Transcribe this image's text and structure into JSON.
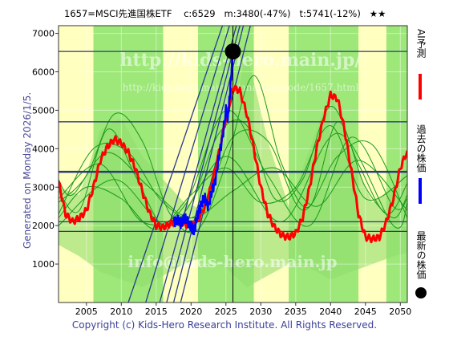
{
  "header": {
    "title": "1657=MSCI先進国株ETF    c:6529   m:3480(-47%)   t:5741(-12%)   ★★"
  },
  "side_label": "Generated on Monday 2026/1/5.",
  "copyright": "Copyright (c) Kids-Hero Research Institute. All Rights Reserved.",
  "watermark": {
    "line1": "http://kids-hero.main.jp/",
    "line2": "http://kids-hero.main.jp/analysis/code/1657.html",
    "line3": "info@kids-hero.main.jp"
  },
  "legend": [
    {
      "label": "AI予測",
      "color": "#ff0000"
    },
    {
      "label": "過去の株価",
      "color": "#0000ff"
    },
    {
      "label": "最新の株価",
      "color": "#000000"
    }
  ],
  "chart_data": {
    "type": "line",
    "xlim": [
      2001,
      2051
    ],
    "ylim": [
      0,
      7200
    ],
    "x_ticks": [
      2005,
      2010,
      2015,
      2020,
      2025,
      2030,
      2035,
      2040,
      2045,
      2050
    ],
    "y_ticks": [
      1000,
      2000,
      3000,
      4000,
      5000,
      6000,
      7000
    ],
    "colors": {
      "ai_forecast": "#ff0000",
      "past_price": "#0000ff",
      "latest_price": "#000000",
      "band_light": "#ffffc0",
      "band_green": "#9ee87a",
      "cycle_lines": "#1a9a1a",
      "levels": "#2a3a7a"
    },
    "latest": {
      "x": 2026.0,
      "y": 6529
    },
    "current_marker_x": 2026.0,
    "horizontal_levels": [
      6529,
      4700,
      3400,
      2100,
      1850
    ],
    "ai_forecast": {
      "x": [
        2001,
        2002,
        2003,
        2004,
        2005,
        2006,
        2007,
        2008,
        2009,
        2010,
        2011,
        2012,
        2013,
        2014,
        2015,
        2016,
        2017,
        2018,
        2019,
        2020,
        2021,
        2022,
        2023,
        2024,
        2025,
        2026,
        2027,
        2028,
        2029,
        2030,
        2031,
        2032,
        2033,
        2034,
        2035,
        2036,
        2037,
        2038,
        2039,
        2040,
        2041,
        2042,
        2043,
        2044,
        2045,
        2046,
        2047,
        2048,
        2049,
        2050,
        2051
      ],
      "y": [
        3150,
        2300,
        2100,
        2200,
        2400,
        3000,
        3700,
        4050,
        4250,
        4150,
        3900,
        3500,
        2900,
        2350,
        2000,
        1950,
        2050,
        2100,
        2050,
        2000,
        2150,
        2500,
        3100,
        3900,
        4800,
        5600,
        5500,
        4900,
        4000,
        3000,
        2300,
        1950,
        1750,
        1700,
        1800,
        2200,
        3000,
        4000,
        4800,
        5400,
        5300,
        4500,
        3400,
        2300,
        1700,
        1650,
        1700,
        2100,
        2700,
        3500,
        3950
      ]
    },
    "past_price": {
      "x": [
        2017.5,
        2018,
        2018.5,
        2019,
        2019.5,
        2020,
        2020.3,
        2020.6,
        2021,
        2021.5,
        2022,
        2022.5,
        2023,
        2023.5,
        2024,
        2024.5,
        2025,
        2025.3,
        2025.6,
        2026.0
      ],
      "y": [
        2100,
        2150,
        2050,
        2200,
        2100,
        2000,
        1850,
        2000,
        2300,
        2600,
        2700,
        2500,
        2900,
        3200,
        3800,
        4300,
        5000,
        4800,
        5500,
        6529
      ]
    },
    "support_lines": [
      {
        "x": [
          2015.5,
          2026.5
        ],
        "y": [
          0,
          7200
        ]
      },
      {
        "x": [
          2016.5,
          2027.0
        ],
        "y": [
          0,
          7200
        ]
      },
      {
        "x": [
          2017.5,
          2027.5
        ],
        "y": [
          0,
          7200
        ]
      },
      {
        "x": [
          2018.5,
          2028.5
        ],
        "y": [
          0,
          7200
        ]
      },
      {
        "x": [
          2013.5,
          2025.5
        ],
        "y": [
          0,
          7200
        ]
      },
      {
        "x": [
          2011.0,
          2024.5
        ],
        "y": [
          0,
          7200
        ]
      }
    ],
    "cycle_lines": [
      {
        "x": [
          2001,
          2005,
          2009,
          2013,
          2017,
          2021,
          2025,
          2029,
          2033,
          2037,
          2041,
          2045,
          2049,
          2051
        ],
        "y": [
          2600,
          3300,
          4900,
          4200,
          2300,
          1900,
          3600,
          5900,
          3600,
          2500,
          4700,
          3000,
          2200,
          2800
        ]
      },
      {
        "x": [
          2001,
          2004,
          2008,
          2012,
          2016,
          2020,
          2024,
          2028,
          2032,
          2036,
          2040,
          2044,
          2048,
          2051
        ],
        "y": [
          2900,
          2400,
          4500,
          3300,
          2000,
          2600,
          4400,
          4600,
          2700,
          3200,
          5100,
          3600,
          2300,
          3100
        ]
      },
      {
        "x": [
          2001,
          2006,
          2011,
          2016,
          2021,
          2026,
          2031,
          2036,
          2041,
          2046,
          2051
        ],
        "y": [
          2300,
          4000,
          3900,
          2600,
          2300,
          4300,
          4200,
          2400,
          3800,
          4100,
          2200
        ]
      },
      {
        "x": [
          2001,
          2007,
          2013,
          2019,
          2025,
          2031,
          2037,
          2043,
          2049,
          2051
        ],
        "y": [
          2700,
          3600,
          2100,
          2500,
          5000,
          3300,
          2000,
          4300,
          2500,
          2700
        ]
      },
      {
        "x": [
          2001,
          2005,
          2010,
          2015,
          2020,
          2025,
          2030,
          2035,
          2040,
          2045,
          2051
        ],
        "y": [
          2200,
          3000,
          2700,
          1900,
          2800,
          3500,
          2600,
          3000,
          4600,
          2700,
          3300
        ]
      },
      {
        "x": [
          2001,
          2003,
          2008,
          2014,
          2020,
          2026,
          2032,
          2038,
          2044,
          2051
        ],
        "y": [
          3200,
          2800,
          3900,
          3000,
          2200,
          2900,
          3500,
          2500,
          3700,
          2400
        ]
      },
      {
        "x": [
          2001,
          2009,
          2017,
          2025,
          2033,
          2041,
          2049,
          2051
        ],
        "y": [
          2000,
          3200,
          2000,
          3800,
          2100,
          4400,
          2000,
          2600
        ]
      }
    ],
    "bands": [
      {
        "x0": 2001,
        "x1": 2006,
        "fill": "light"
      },
      {
        "x0": 2016,
        "x1": 2021,
        "fill": "light"
      },
      {
        "x0": 2029,
        "x1": 2034,
        "fill": "light"
      },
      {
        "x0": 2044,
        "x1": 2048,
        "fill": "light"
      }
    ],
    "shadow_x": [
      2001,
      2004,
      2007,
      2010,
      2013,
      2016,
      2019,
      2022,
      2025,
      2028,
      2031,
      2034,
      2037,
      2040,
      2043,
      2046,
      2049,
      2051
    ],
    "shadow_top": [
      3000,
      2800,
      4500,
      4800,
      3800,
      3200,
      2600,
      2400,
      4200,
      6500,
      4200,
      2500,
      4000,
      5500,
      3800,
      2600,
      3000,
      3500
    ],
    "shadow_bottom": [
      1500,
      1200,
      800,
      600,
      400,
      700,
      1000,
      1200,
      900,
      400,
      700,
      1000,
      900,
      600,
      800,
      1000,
      1200,
      1300
    ]
  }
}
